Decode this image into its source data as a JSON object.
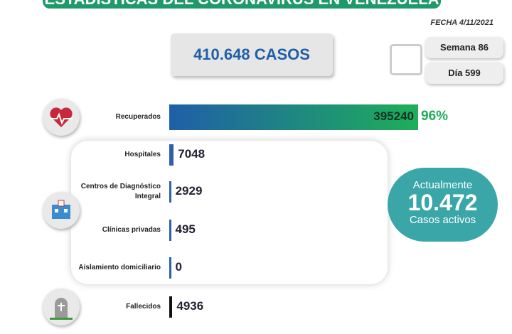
{
  "header": {
    "title": "ESTADÍSTICAS DEL CORONAVIRUS EN VENEZUELA",
    "date": "FECHA 4/11/2021"
  },
  "total": "410.648 CASOS",
  "week": "Semana 86",
  "day": "Día 599",
  "rows": [
    {
      "label": "Recuperados",
      "value": 395240,
      "percent": "96%"
    },
    {
      "label": "Hospitales",
      "value": 7048
    },
    {
      "label": "Centros de Diagnóstico Integral",
      "value": 2929
    },
    {
      "label": "Clínicas privadas",
      "value": 495
    },
    {
      "label": "Aislamiento domiciliario",
      "value": 0
    },
    {
      "label": "Fallecidos",
      "value": 4936
    }
  ],
  "active": {
    "heading": "Actualmente",
    "value": "10.472",
    "caption": "Casos activos"
  }
}
